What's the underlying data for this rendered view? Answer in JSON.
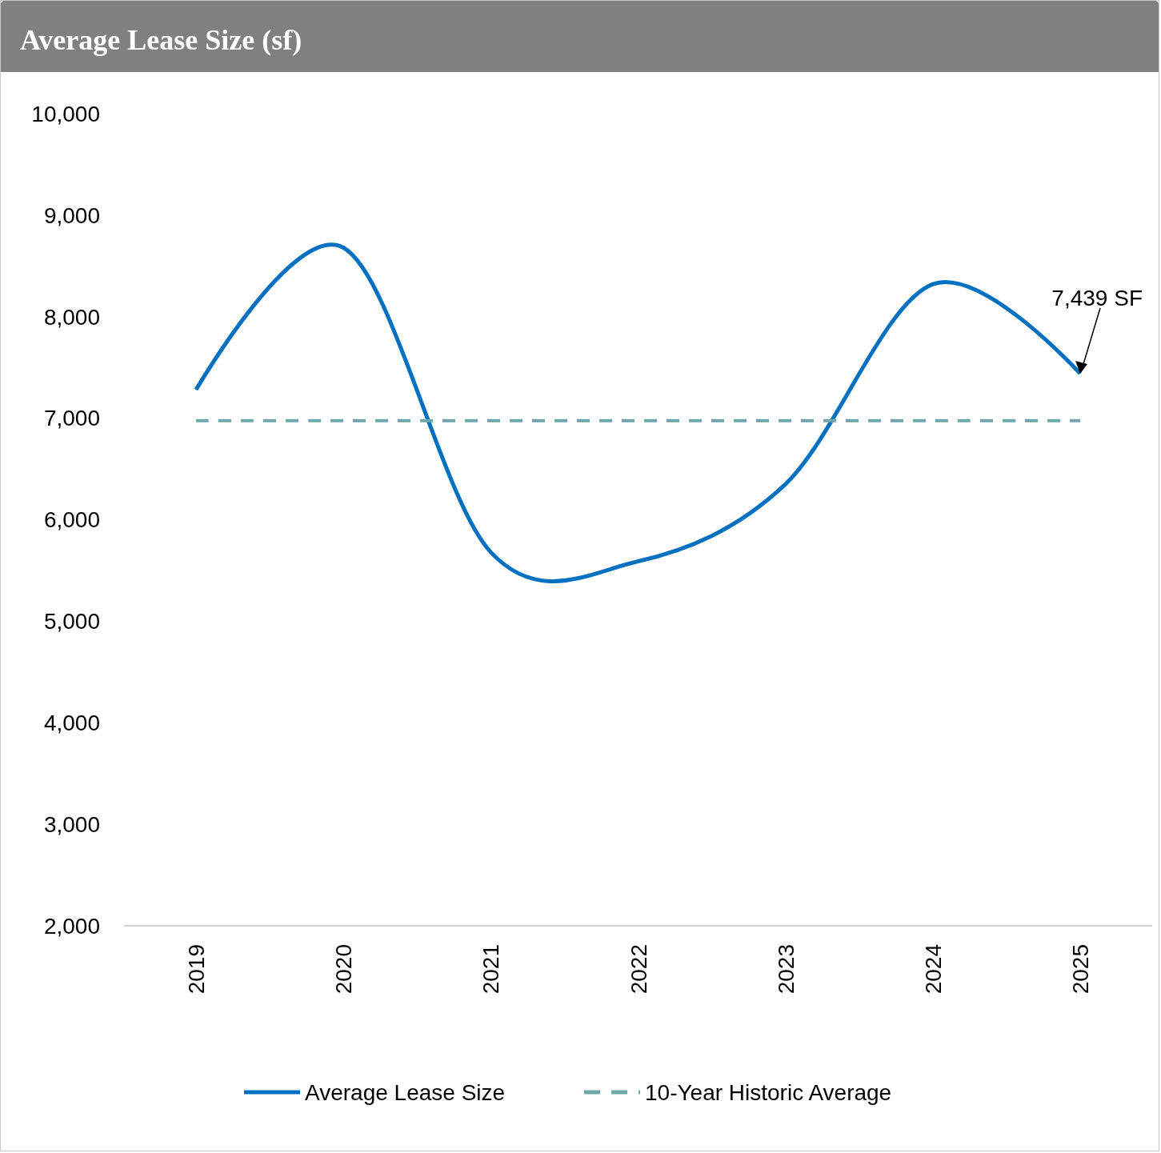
{
  "chart_data": {
    "type": "line",
    "title": "Average Lease Size (sf)",
    "categories": [
      "2019",
      "2020",
      "2021",
      "2022",
      "2023",
      "2024",
      "2025"
    ],
    "series": [
      {
        "name": "Average Lease Size",
        "color": "#0070c0",
        "values": [
          7280,
          8680,
          5680,
          5590,
          6350,
          8320,
          7439
        ],
        "line_style": "solid"
      },
      {
        "name": "10-Year Historic Average",
        "color": "#6fa8a8",
        "values": [
          6975,
          6975,
          6975,
          6975,
          6975,
          6975,
          6975
        ],
        "line_style": "dashed"
      }
    ],
    "ylim": [
      2000,
      10000
    ],
    "yticks": [
      {
        "value": 2000,
        "label": "2,000"
      },
      {
        "value": 3000,
        "label": "3,000"
      },
      {
        "value": 4000,
        "label": "4,000"
      },
      {
        "value": 5000,
        "label": "5,000"
      },
      {
        "value": 6000,
        "label": "6,000"
      },
      {
        "value": 7000,
        "label": "7,000"
      },
      {
        "value": 8000,
        "label": "8,000"
      },
      {
        "value": 9000,
        "label": "9,000"
      },
      {
        "value": 10000,
        "label": "10,000"
      }
    ],
    "annotations": [
      {
        "text": "7,439 SF",
        "x": "2025",
        "y": 7439
      }
    ],
    "grid": false,
    "legend": "bottom",
    "marker": "none"
  }
}
